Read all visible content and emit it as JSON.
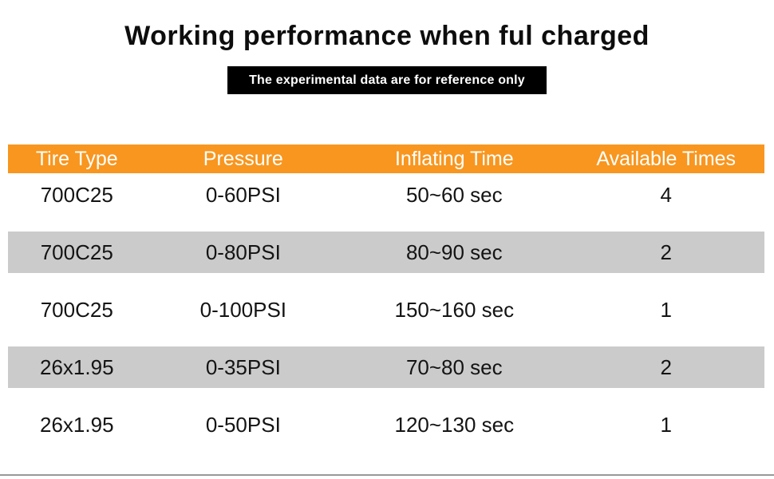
{
  "chart_data": {
    "type": "table",
    "title": "Working performance when ful charged",
    "subtitle": "The experimental data are for reference only",
    "columns": [
      "Tire Type",
      "Pressure",
      "Inflating Time",
      "Available Times"
    ],
    "rows": [
      [
        "700C25",
        "0-60PSI",
        "50~60 sec",
        "4"
      ],
      [
        "700C25",
        "0-80PSI",
        "80~90 sec",
        "2"
      ],
      [
        "700C25",
        "0-100PSI",
        "150~160 sec",
        "1"
      ],
      [
        "26x1.95",
        "0-35PSI",
        "70~80 sec",
        "2"
      ],
      [
        "26x1.95",
        "0-50PSI",
        "120~130 sec",
        "1"
      ]
    ]
  },
  "colors": {
    "header_bg": "#F8961F",
    "header_text": "#FFFFFF",
    "alt_row_bg": "#CBCBCB",
    "badge_bg": "#000000",
    "badge_text": "#FFFFFF",
    "bottom_line": "#999999"
  }
}
